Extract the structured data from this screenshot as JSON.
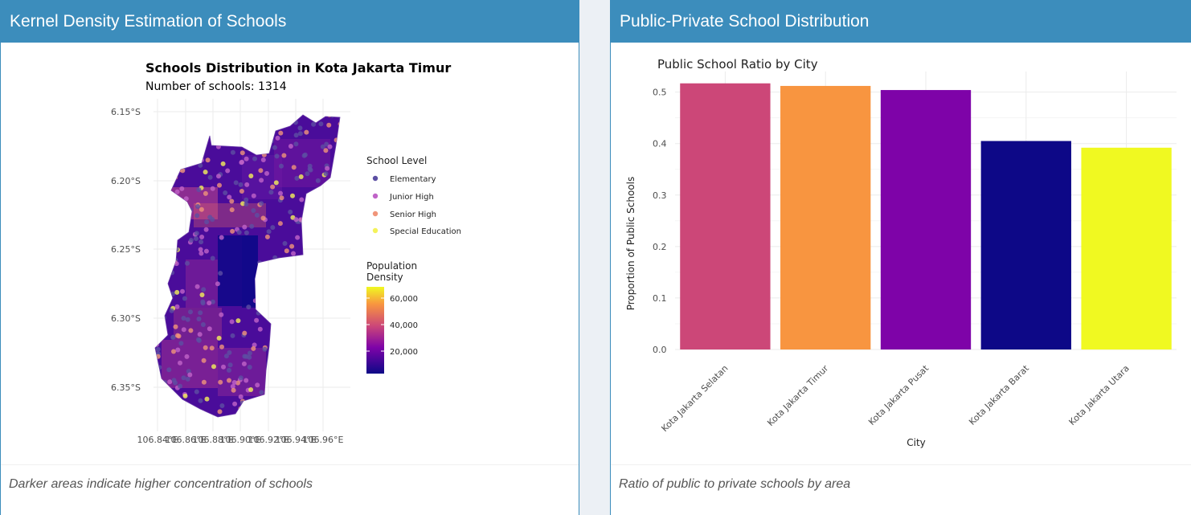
{
  "left_panel": {
    "header": "Kernel Density Estimation of Schools",
    "footer": "Darker areas indicate higher concentration of schools",
    "map": {
      "title": "Schools Distribution in Kota Jakarta Timur",
      "subtitle": "Number of schools: 1314",
      "y_ticks": [
        "6.15°S",
        "6.20°S",
        "6.25°S",
        "6.30°S",
        "6.35°S"
      ],
      "x_ticks": [
        "106.84°E",
        "106.86°E",
        "106.88°E",
        "106.90°E",
        "106.92°E",
        "106.94°E",
        "106.96°E"
      ],
      "legend_school_title": "School Level",
      "school_levels": [
        {
          "label": "Elementary",
          "color": "#5c4fa3"
        },
        {
          "label": "Junior High",
          "color": "#c064c8"
        },
        {
          "label": "Senior High",
          "color": "#f0957a"
        },
        {
          "label": "Special Education",
          "color": "#f4f25a"
        }
      ],
      "legend_density_title_1": "Population",
      "legend_density_title_2": "Density",
      "density_ticks": [
        "60,000",
        "40,000",
        "20,000"
      ]
    }
  },
  "right_panel": {
    "header": "Public-Private School Distribution",
    "footer": "Ratio of public to private schools by area",
    "chart_data": {
      "type": "bar",
      "title": "Public School Ratio by City",
      "xlabel": "City",
      "ylabel": "Proportion of Public Schools",
      "categories": [
        "Kota Jakarta Selatan",
        "Kota Jakarta Timur",
        "Kota Jakarta Pusat",
        "Kota Jakarta Barat",
        "Kota Jakarta Utara"
      ],
      "values": [
        0.517,
        0.512,
        0.504,
        0.405,
        0.392
      ],
      "colors": [
        "#cc4778",
        "#f89540",
        "#7e03a8",
        "#0d0887",
        "#f0f921"
      ],
      "ylim": [
        0,
        0.54
      ],
      "y_ticks": [
        0.0,
        0.1,
        0.2,
        0.3,
        0.4,
        0.5
      ],
      "y_tick_labels": [
        "0.0",
        "0.1",
        "0.2",
        "0.3",
        "0.4",
        "0.5"
      ],
      "grid": true
    }
  }
}
